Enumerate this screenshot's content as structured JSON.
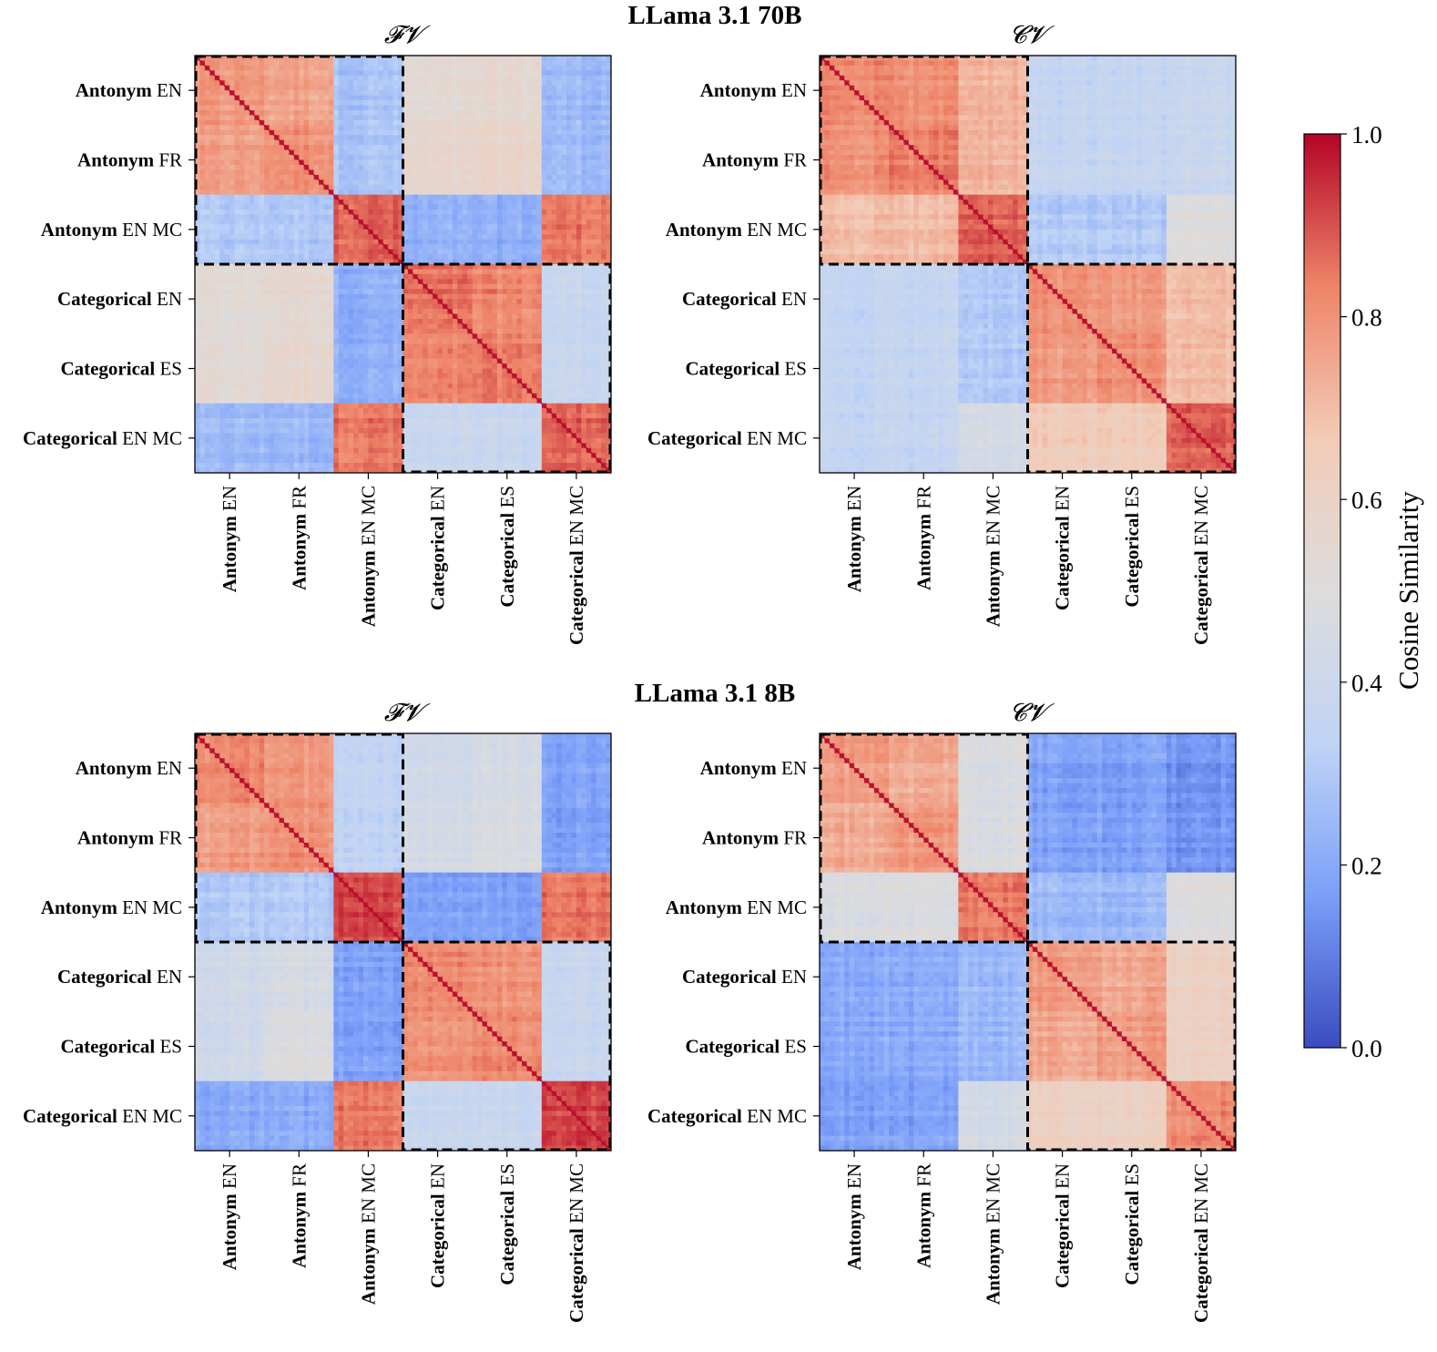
{
  "figure": {
    "colorbar": {
      "label": "Cosine Similarity",
      "ticks": [
        "0.0",
        "0.2",
        "0.4",
        "0.6",
        "0.8",
        "1.0"
      ],
      "colormap": "coolwarm",
      "colors": [
        "#3b4cc0",
        "#7b9ff9",
        "#c0d4f5",
        "#dddcdc",
        "#f2cbb7",
        "#ee8468",
        "#b40426"
      ]
    },
    "rows": [
      {
        "title": "LLama 3.1 70B",
        "panels": [
          {
            "subtitle": "𝓕𝓥"
          },
          {
            "subtitle": "𝓒𝓥"
          }
        ]
      },
      {
        "title": "LLama 3.1 8B",
        "panels": [
          {
            "subtitle": "𝓕𝓥"
          },
          {
            "subtitle": "𝓒𝓥"
          }
        ]
      }
    ]
  },
  "chart_data": [
    {
      "type": "heatmap",
      "title": "LLama 3.1 70B",
      "subtitle": "𝓕𝓥",
      "categories": [
        {
          "bold": "Antonym",
          "rest": "EN"
        },
        {
          "bold": "Antonym",
          "rest": "FR"
        },
        {
          "bold": "Antonym",
          "rest": "EN MC"
        },
        {
          "bold": "Categorical",
          "rest": "EN"
        },
        {
          "bold": "Categorical",
          "rest": "ES"
        },
        {
          "bold": "Categorical",
          "rest": "EN MC"
        }
      ],
      "vmin": 0,
      "vmax": 1,
      "block_values": [
        [
          0.78,
          0.76,
          0.28,
          0.53,
          0.55,
          0.25
        ],
        [
          0.76,
          0.8,
          0.28,
          0.56,
          0.58,
          0.25
        ],
        [
          0.3,
          0.3,
          0.88,
          0.22,
          0.22,
          0.85
        ],
        [
          0.53,
          0.56,
          0.22,
          0.85,
          0.82,
          0.38
        ],
        [
          0.53,
          0.57,
          0.22,
          0.82,
          0.84,
          0.38
        ],
        [
          0.25,
          0.25,
          0.85,
          0.38,
          0.38,
          0.88
        ]
      ]
    },
    {
      "type": "heatmap",
      "title": "LLama 3.1 70B",
      "subtitle": "𝓒𝓥",
      "categories": [
        {
          "bold": "Antonym",
          "rest": "EN"
        },
        {
          "bold": "Antonym",
          "rest": "FR"
        },
        {
          "bold": "Antonym",
          "rest": "EN MC"
        },
        {
          "bold": "Categorical",
          "rest": "EN"
        },
        {
          "bold": "Categorical",
          "rest": "ES"
        },
        {
          "bold": "Categorical",
          "rest": "EN MC"
        }
      ],
      "vmin": 0,
      "vmax": 1,
      "block_values": [
        [
          0.82,
          0.8,
          0.72,
          0.36,
          0.36,
          0.38
        ],
        [
          0.8,
          0.83,
          0.72,
          0.36,
          0.36,
          0.38
        ],
        [
          0.7,
          0.7,
          0.88,
          0.3,
          0.3,
          0.5
        ],
        [
          0.36,
          0.36,
          0.3,
          0.8,
          0.78,
          0.7
        ],
        [
          0.36,
          0.36,
          0.3,
          0.78,
          0.8,
          0.7
        ],
        [
          0.36,
          0.36,
          0.45,
          0.65,
          0.65,
          0.88
        ]
      ]
    },
    {
      "type": "heatmap",
      "title": "LLama 3.1 8B",
      "subtitle": "𝓕𝓥",
      "categories": [
        {
          "bold": "Antonym",
          "rest": "EN"
        },
        {
          "bold": "Antonym",
          "rest": "FR"
        },
        {
          "bold": "Antonym",
          "rest": "EN MC"
        },
        {
          "bold": "Categorical",
          "rest": "EN"
        },
        {
          "bold": "Categorical",
          "rest": "ES"
        },
        {
          "bold": "Categorical",
          "rest": "EN MC"
        }
      ],
      "vmin": 0,
      "vmax": 1,
      "block_values": [
        [
          0.82,
          0.78,
          0.35,
          0.42,
          0.45,
          0.18
        ],
        [
          0.78,
          0.8,
          0.35,
          0.45,
          0.48,
          0.18
        ],
        [
          0.3,
          0.3,
          0.92,
          0.18,
          0.18,
          0.85
        ],
        [
          0.42,
          0.45,
          0.18,
          0.82,
          0.8,
          0.38
        ],
        [
          0.42,
          0.48,
          0.18,
          0.8,
          0.82,
          0.38
        ],
        [
          0.2,
          0.2,
          0.85,
          0.38,
          0.38,
          0.92
        ]
      ]
    },
    {
      "type": "heatmap",
      "title": "LLama 3.1 8B",
      "subtitle": "𝓒𝓥",
      "categories": [
        {
          "bold": "Antonym",
          "rest": "EN"
        },
        {
          "bold": "Antonym",
          "rest": "FR"
        },
        {
          "bold": "Antonym",
          "rest": "EN MC"
        },
        {
          "bold": "Categorical",
          "rest": "EN"
        },
        {
          "bold": "Categorical",
          "rest": "ES"
        },
        {
          "bold": "Categorical",
          "rest": "EN MC"
        }
      ],
      "vmin": 0,
      "vmax": 1,
      "block_values": [
        [
          0.78,
          0.74,
          0.48,
          0.18,
          0.18,
          0.15
        ],
        [
          0.74,
          0.78,
          0.48,
          0.18,
          0.18,
          0.15
        ],
        [
          0.48,
          0.48,
          0.85,
          0.25,
          0.25,
          0.5
        ],
        [
          0.2,
          0.2,
          0.25,
          0.78,
          0.75,
          0.62
        ],
        [
          0.2,
          0.2,
          0.25,
          0.75,
          0.78,
          0.62
        ],
        [
          0.18,
          0.18,
          0.45,
          0.62,
          0.62,
          0.82
        ]
      ]
    }
  ]
}
